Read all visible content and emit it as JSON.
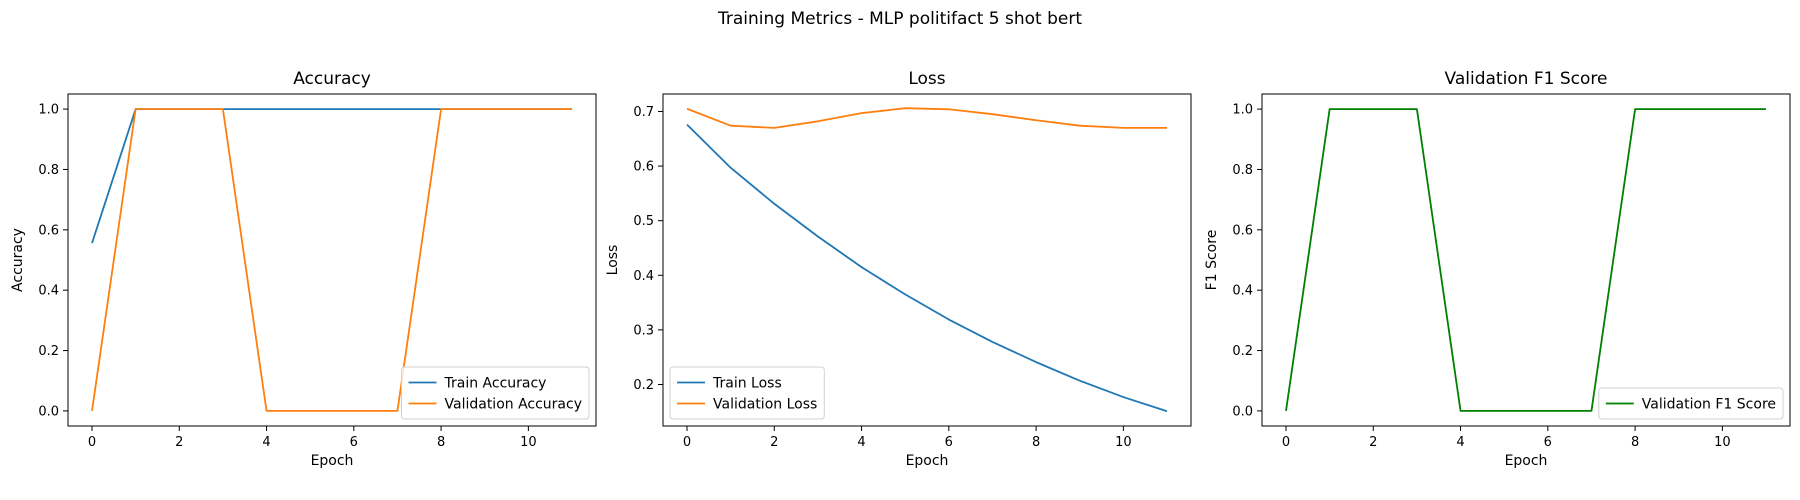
{
  "figure": {
    "title": "Training Metrics - MLP politifact 5 shot bert"
  },
  "chart_data": [
    {
      "type": "line",
      "title": "Accuracy",
      "xlabel": "Epoch",
      "ylabel": "Accuracy",
      "xlim": [
        -0.55,
        11.55
      ],
      "ylim": [
        -0.05,
        1.05
      ],
      "xticks": [
        0,
        2,
        4,
        6,
        8,
        10
      ],
      "xtick_labels": [
        "0",
        "2",
        "4",
        "6",
        "8",
        "10"
      ],
      "yticks": [
        0,
        0.2,
        0.4,
        0.6,
        0.8,
        1.0
      ],
      "ytick_labels": [
        "0.0",
        "0.2",
        "0.4",
        "0.6",
        "0.8",
        "1.0"
      ],
      "grid": false,
      "legend_position": "lower-right",
      "x": [
        0,
        1,
        2,
        3,
        4,
        5,
        6,
        7,
        8,
        9,
        10,
        11
      ],
      "series": [
        {
          "name": "Train Accuracy",
          "color": "#1f77b4",
          "values": [
            0.556,
            1,
            1,
            1,
            1,
            1,
            1,
            1,
            1,
            1,
            1,
            1
          ]
        },
        {
          "name": "Validation Accuracy",
          "color": "#ff7f0e",
          "values": [
            0,
            1,
            1,
            1,
            0,
            0,
            0,
            0,
            1,
            1,
            1,
            1
          ]
        }
      ]
    },
    {
      "type": "line",
      "title": "Loss",
      "xlabel": "Epoch",
      "ylabel": "Loss",
      "xlim": [
        -0.55,
        11.55
      ],
      "ylim": [
        0.124,
        0.732
      ],
      "xticks": [
        0,
        2,
        4,
        6,
        8,
        10
      ],
      "xtick_labels": [
        "0",
        "2",
        "4",
        "6",
        "8",
        "10"
      ],
      "yticks": [
        0.2,
        0.3,
        0.4,
        0.5,
        0.6,
        0.7
      ],
      "ytick_labels": [
        "0.2",
        "0.3",
        "0.4",
        "0.5",
        "0.6",
        "0.7"
      ],
      "grid": false,
      "legend_position": "lower-left",
      "x": [
        0,
        1,
        2,
        3,
        4,
        5,
        6,
        7,
        8,
        9,
        10,
        11
      ],
      "series": [
        {
          "name": "Train Loss",
          "color": "#1f77b4",
          "values": [
            0.676,
            0.597,
            0.531,
            0.471,
            0.415,
            0.365,
            0.319,
            0.278,
            0.241,
            0.207,
            0.177,
            0.151
          ]
        },
        {
          "name": "Validation Loss",
          "color": "#ff7f0e",
          "values": [
            0.705,
            0.674,
            0.67,
            0.682,
            0.697,
            0.706,
            0.704,
            0.695,
            0.684,
            0.674,
            0.67,
            0.67
          ]
        }
      ]
    },
    {
      "type": "line",
      "title": "Validation F1 Score",
      "xlabel": "Epoch",
      "ylabel": "F1 Score",
      "xlim": [
        -0.55,
        11.55
      ],
      "ylim": [
        -0.05,
        1.05
      ],
      "xticks": [
        0,
        2,
        4,
        6,
        8,
        10
      ],
      "xtick_labels": [
        "0",
        "2",
        "4",
        "6",
        "8",
        "10"
      ],
      "yticks": [
        0,
        0.2,
        0.4,
        0.6,
        0.8,
        1.0
      ],
      "ytick_labels": [
        "0.0",
        "0.2",
        "0.4",
        "0.6",
        "0.8",
        "1.0"
      ],
      "grid": false,
      "legend_position": "lower-right",
      "x": [
        0,
        1,
        2,
        3,
        4,
        5,
        6,
        7,
        8,
        9,
        10,
        11
      ],
      "series": [
        {
          "name": "Validation F1 Score",
          "color": "#008000",
          "values": [
            0,
            1,
            1,
            1,
            0,
            0,
            0,
            0,
            1,
            1,
            1,
            1
          ]
        }
      ]
    }
  ]
}
